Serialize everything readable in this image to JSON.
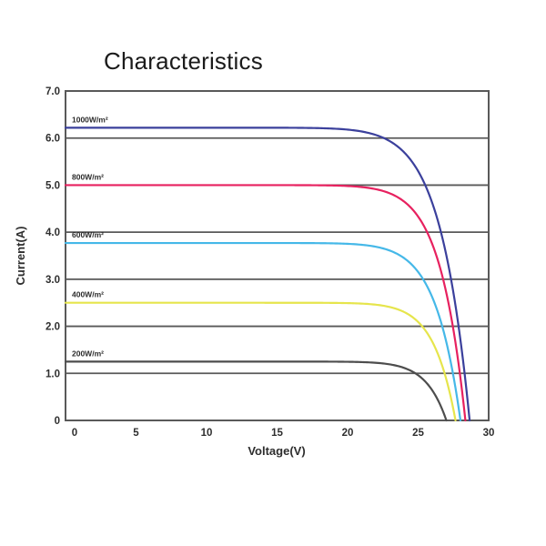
{
  "title": "Characteristics",
  "chart_data": {
    "type": "line",
    "title": "Characteristics",
    "xlabel": "Voltage(V)",
    "ylabel": "Current(A)",
    "xlim": [
      0,
      30
    ],
    "ylim": [
      0,
      7
    ],
    "x_ticks": [
      {
        "value": 0,
        "label": "0"
      },
      {
        "value": 5,
        "label": "5"
      },
      {
        "value": 10,
        "label": "10"
      },
      {
        "value": 15,
        "label": "15"
      },
      {
        "value": 20,
        "label": "20"
      },
      {
        "value": 25,
        "label": "25"
      },
      {
        "value": 30,
        "label": "30"
      }
    ],
    "y_ticks": [
      {
        "value": 0,
        "label": "0"
      },
      {
        "value": 1,
        "label": "1.0"
      },
      {
        "value": 2,
        "label": "2.0"
      },
      {
        "value": 3,
        "label": "3.0"
      },
      {
        "value": 4,
        "label": "4.0"
      },
      {
        "value": 5,
        "label": "5.0"
      },
      {
        "value": 6,
        "label": "6.0"
      },
      {
        "value": 7,
        "label": "7.0"
      }
    ],
    "grid": "horizontal-only",
    "legend_position": "inline-labels-left",
    "axis_color": "#595959",
    "series": [
      {
        "name": "1000W/m²",
        "color": "#3b409c",
        "short_circuit_current_a": 6.22,
        "open_circuit_voltage_v": 28.65,
        "knee_sharpness": 14,
        "points": [
          [
            0,
            6.22
          ],
          [
            5,
            6.22
          ],
          [
            10,
            6.22
          ],
          [
            15,
            6.22
          ],
          [
            20,
            6.18
          ],
          [
            22,
            6.07
          ],
          [
            24,
            5.7
          ],
          [
            25,
            5.3
          ],
          [
            26,
            4.62
          ],
          [
            27,
            3.51
          ],
          [
            28,
            1.71
          ],
          [
            28.65,
            0
          ]
        ]
      },
      {
        "name": "800W/m²",
        "color": "#e7215f",
        "short_circuit_current_a": 5.0,
        "open_circuit_voltage_v": 28.35,
        "knee_sharpness": 16,
        "points": [
          [
            0,
            5.0
          ],
          [
            5,
            5.0
          ],
          [
            10,
            5.0
          ],
          [
            15,
            5.0
          ],
          [
            20,
            4.98
          ],
          [
            22,
            4.91
          ],
          [
            24,
            4.65
          ],
          [
            25,
            4.33
          ],
          [
            26,
            3.75
          ],
          [
            27,
            2.71
          ],
          [
            28,
            0.9
          ],
          [
            28.35,
            0
          ]
        ]
      },
      {
        "name": "600W/m²",
        "color": "#45b8e8",
        "short_circuit_current_a": 3.77,
        "open_circuit_voltage_v": 28.0,
        "knee_sharpness": 16,
        "points": [
          [
            0,
            3.77
          ],
          [
            5,
            3.77
          ],
          [
            10,
            3.77
          ],
          [
            15,
            3.77
          ],
          [
            20,
            3.75
          ],
          [
            22,
            3.69
          ],
          [
            24,
            3.45
          ],
          [
            25,
            3.16
          ],
          [
            26,
            2.62
          ],
          [
            27,
            1.66
          ],
          [
            28,
            0
          ]
        ]
      },
      {
        "name": "400W/m²",
        "color": "#e6e54c",
        "short_circuit_current_a": 2.5,
        "open_circuit_voltage_v": 27.65,
        "knee_sharpness": 18,
        "points": [
          [
            0,
            2.5
          ],
          [
            5,
            2.5
          ],
          [
            10,
            2.5
          ],
          [
            15,
            2.5
          ],
          [
            20,
            2.49
          ],
          [
            22,
            2.46
          ],
          [
            24,
            2.3
          ],
          [
            25,
            2.09
          ],
          [
            26,
            1.67
          ],
          [
            27,
            0.87
          ],
          [
            27.65,
            0
          ]
        ]
      },
      {
        "name": "200W/m²",
        "color": "#4d4d4d",
        "short_circuit_current_a": 1.25,
        "open_circuit_voltage_v": 27.0,
        "knee_sharpness": 19,
        "points": [
          [
            0,
            1.25
          ],
          [
            5,
            1.25
          ],
          [
            10,
            1.25
          ],
          [
            15,
            1.25
          ],
          [
            20,
            1.25
          ],
          [
            22,
            1.22
          ],
          [
            24,
            1.12
          ],
          [
            25,
            0.96
          ],
          [
            26,
            0.64
          ],
          [
            27,
            0
          ]
        ]
      }
    ]
  }
}
